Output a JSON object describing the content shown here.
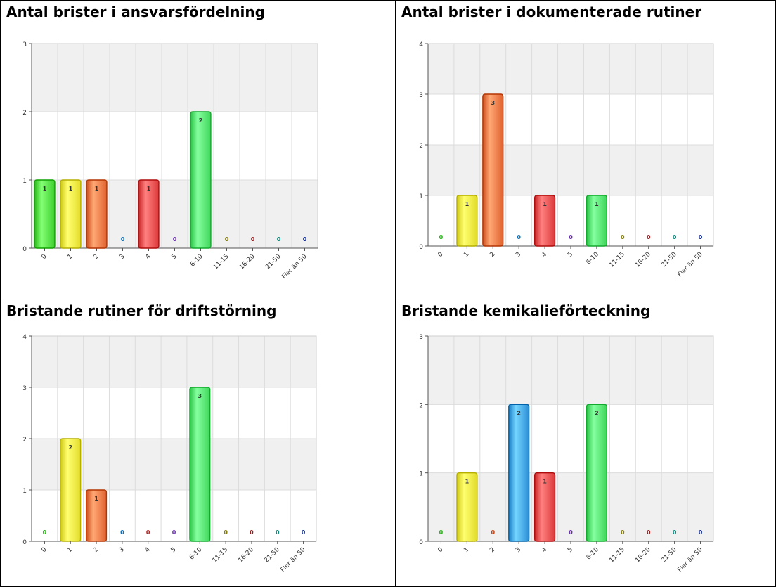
{
  "charts": [
    {
      "title": "Antal brister i ansvarsfördelning",
      "chart_data": {
        "type": "bar",
        "categories": [
          "0",
          "1",
          "2",
          "3",
          "4",
          "5",
          "6-10",
          "11-15",
          "16-20",
          "21-50",
          "Fler än 50"
        ],
        "values": [
          1,
          1,
          1,
          0,
          1,
          0,
          2,
          0,
          0,
          0,
          0
        ],
        "ylim": [
          0,
          3
        ],
        "yticks": [
          0,
          1,
          2,
          3
        ],
        "xlabel": "",
        "ylabel": "",
        "grid": true
      }
    },
    {
      "title": "Antal brister i dokumenterade rutiner",
      "chart_data": {
        "type": "bar",
        "categories": [
          "0",
          "1",
          "2",
          "3",
          "4",
          "5",
          "6-10",
          "11-15",
          "16-20",
          "21-50",
          "Fler än 50"
        ],
        "values": [
          0,
          1,
          3,
          0,
          1,
          0,
          1,
          0,
          0,
          0,
          0
        ],
        "ylim": [
          0,
          4
        ],
        "yticks": [
          0,
          1,
          2,
          3,
          4
        ],
        "xlabel": "",
        "ylabel": "",
        "grid": true
      }
    },
    {
      "title": "Bristande rutiner för driftstörning",
      "chart_data": {
        "type": "bar",
        "categories": [
          "0",
          "1",
          "2",
          "3",
          "4",
          "5",
          "6-10",
          "11-15",
          "16-20",
          "21-50",
          "Fler än 50"
        ],
        "values": [
          0,
          2,
          1,
          0,
          0,
          0,
          3,
          0,
          0,
          0,
          0
        ],
        "ylim": [
          0,
          4
        ],
        "yticks": [
          0,
          1,
          2,
          3,
          4
        ],
        "xlabel": "",
        "ylabel": "",
        "grid": true
      }
    },
    {
      "title": "Bristande kemikalieförteckning",
      "chart_data": {
        "type": "bar",
        "categories": [
          "0",
          "1",
          "2",
          "3",
          "4",
          "5",
          "6-10",
          "11-15",
          "16-20",
          "21-50",
          "Fler än 50"
        ],
        "values": [
          0,
          1,
          0,
          2,
          1,
          0,
          2,
          0,
          0,
          0,
          0
        ],
        "ylim": [
          0,
          3
        ],
        "yticks": [
          0,
          1,
          2,
          3
        ],
        "xlabel": "",
        "ylabel": "",
        "grid": true
      }
    }
  ],
  "category_colors": {
    "0": "#3ecf2e",
    "1": "#e3dc2a",
    "2": "#e0622f",
    "3": "#2d8fd6",
    "4": "#dc3a3a",
    "5": "#8a4ed0",
    "6-10": "#3fd65a",
    "11-15": "#a39a2a",
    "16-20": "#b43c3c",
    "21-50": "#2aa59a",
    "Fler än 50": "#2a48b4"
  }
}
